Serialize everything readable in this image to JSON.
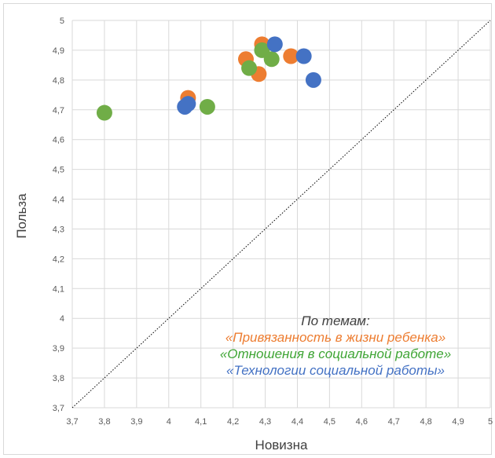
{
  "chart_data": {
    "type": "scatter",
    "title": "",
    "xlabel": "Новизна",
    "ylabel": "Польза",
    "xlim": [
      3.7,
      5
    ],
    "ylim": [
      3.7,
      5
    ],
    "x_ticks": [
      "3,7",
      "3,8",
      "3,9",
      "4",
      "4,1",
      "4,2",
      "4,3",
      "4,4",
      "4,5",
      "4,6",
      "4,7",
      "4,8",
      "4,9",
      "5"
    ],
    "y_ticks": [
      "3,7",
      "3,8",
      "3,9",
      "4",
      "4,1",
      "4,2",
      "4,3",
      "4,4",
      "4,5",
      "4,6",
      "4,7",
      "4,8",
      "4,9",
      "5"
    ],
    "grid": true,
    "diagonal_reference_line": true,
    "annotation": {
      "heading": "По темам:",
      "lines": [
        {
          "text": "«Привязанность в жизни ребенка»",
          "color": "#ED7D31"
        },
        {
          "text": "«Отношения в социальной работе»",
          "color": "#3FA535"
        },
        {
          "text": "«Технологии социальной работы»",
          "color": "#4472C4"
        }
      ]
    },
    "series": [
      {
        "color": "#ED7D31",
        "points": [
          [
            4.06,
            4.74
          ],
          [
            4.24,
            4.87
          ],
          [
            4.28,
            4.82
          ],
          [
            4.29,
            4.92
          ],
          [
            4.38,
            4.88
          ]
        ]
      },
      {
        "color": "#70AD47",
        "points": [
          [
            3.8,
            4.69
          ],
          [
            4.12,
            4.71
          ],
          [
            4.25,
            4.84
          ],
          [
            4.29,
            4.9
          ],
          [
            4.32,
            4.87
          ]
        ]
      },
      {
        "color": "#4472C4",
        "points": [
          [
            4.05,
            4.71
          ],
          [
            4.06,
            4.72
          ],
          [
            4.33,
            4.92
          ],
          [
            4.42,
            4.88
          ],
          [
            4.45,
            4.8
          ]
        ]
      }
    ]
  }
}
